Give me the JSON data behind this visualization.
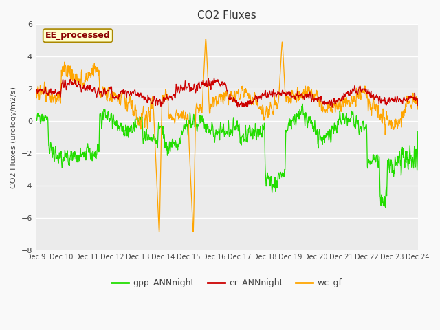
{
  "title": "CO2 Fluxes",
  "ylabel": "CO2 Fluxes (urology/m2/s)",
  "ylim": [
    -8,
    6
  ],
  "yticks": [
    -8,
    -6,
    -4,
    -2,
    0,
    2,
    4,
    6
  ],
  "xticklabels": [
    "Dec 9",
    "Dec 10",
    "Dec 11",
    "Dec 12",
    "Dec 13",
    "Dec 14",
    "Dec 15",
    "Dec 16",
    "Dec 17",
    "Dec 18",
    "Dec 19",
    "Dec 20",
    "Dec 21",
    "Dec 22",
    "Dec 23",
    "Dec 24"
  ],
  "legend_label": "EE_processed",
  "series_labels": [
    "gpp_ANNnight",
    "er_ANNnight",
    "wc_gf"
  ],
  "colors": [
    "#22dd00",
    "#cc0000",
    "#ffa500"
  ],
  "fig_facecolor": "#f9f9f9",
  "plot_bg_color": "#ebebeb",
  "grid_color": "#ffffff",
  "title_fontsize": 11,
  "label_fontsize": 8,
  "tick_fontsize": 8,
  "legend_fontsize": 9,
  "n_points": 1440,
  "seed": 7
}
